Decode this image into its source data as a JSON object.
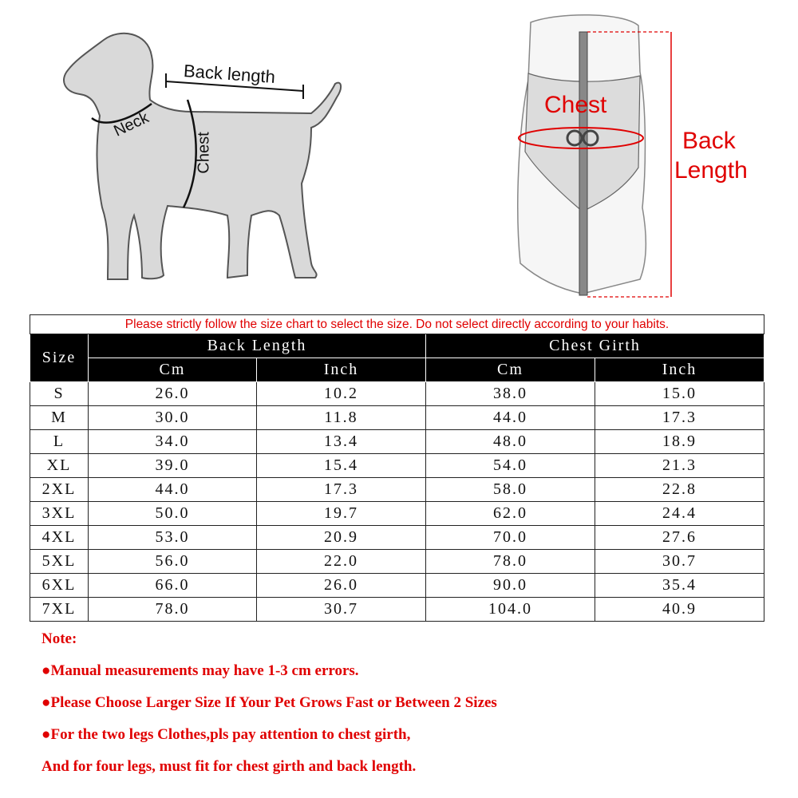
{
  "dog_diagram": {
    "back_length": "Back length",
    "neck": "Neck",
    "chest": "Chest"
  },
  "coat_diagram": {
    "chest": "Chest",
    "back_length_line1": "Back",
    "back_length_line2": "Length"
  },
  "colors": {
    "accent_red": "#e00000",
    "header_bg": "#000000"
  },
  "size_table": {
    "notice": "Please strictly follow the size chart to select the size. Do not select directly according to your habits.",
    "size_header": "Size",
    "groups": [
      "Back Length",
      "Chest Girth"
    ],
    "units": [
      "Cm",
      "Inch",
      "Cm",
      "Inch"
    ],
    "rows": [
      [
        "S",
        "26.0",
        "10.2",
        "38.0",
        "15.0"
      ],
      [
        "M",
        "30.0",
        "11.8",
        "44.0",
        "17.3"
      ],
      [
        "L",
        "34.0",
        "13.4",
        "48.0",
        "18.9"
      ],
      [
        "XL",
        "39.0",
        "15.4",
        "54.0",
        "21.3"
      ],
      [
        "2XL",
        "44.0",
        "17.3",
        "58.0",
        "22.8"
      ],
      [
        "3XL",
        "50.0",
        "19.7",
        "62.0",
        "24.4"
      ],
      [
        "4XL",
        "53.0",
        "20.9",
        "70.0",
        "27.6"
      ],
      [
        "5XL",
        "56.0",
        "22.0",
        "78.0",
        "30.7"
      ],
      [
        "6XL",
        "66.0",
        "26.0",
        "90.0",
        "35.4"
      ],
      [
        "7XL",
        "78.0",
        "30.7",
        "104.0",
        "40.9"
      ]
    ]
  },
  "notes": {
    "title": "Note:",
    "lines": [
      "●Manual measurements may have 1-3 cm errors.",
      "●Please Choose Larger Size If Your Pet Grows Fast or Between 2 Sizes",
      "●For the two legs Clothes,pls pay attention to chest girth,",
      "And for four legs, must fit for chest girth and back length."
    ]
  }
}
